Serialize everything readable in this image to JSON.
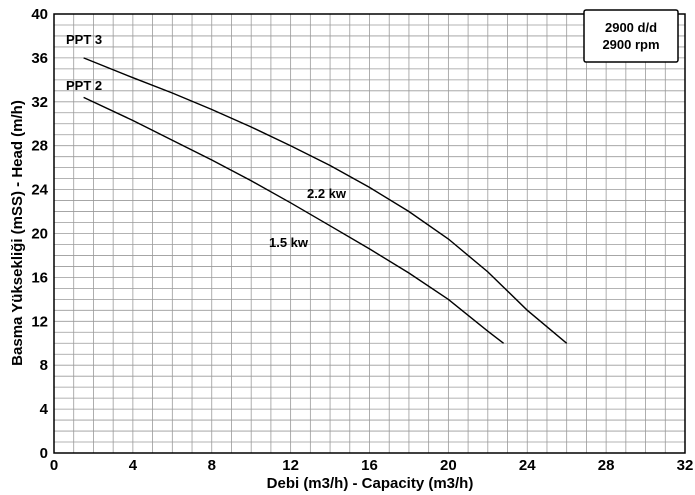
{
  "chart_data": {
    "type": "line",
    "xlabel": "Debi (m3/h) - Capacity (m3/h)",
    "ylabel": "Basma Yüksekliği (mSS) - Head (m/h)",
    "xlim": [
      0,
      32
    ],
    "ylim": [
      0,
      40
    ],
    "x_ticks": [
      0,
      4,
      8,
      12,
      16,
      20,
      24,
      28,
      32
    ],
    "y_ticks": [
      0,
      4,
      8,
      12,
      16,
      20,
      24,
      28,
      32,
      36,
      40
    ],
    "x_minor_step": 1,
    "y_minor_step": 1,
    "grid": true,
    "info_box": {
      "line1": "2900 d/d",
      "line2": "2900 rpm",
      "placement": "top-right"
    },
    "series": [
      {
        "name": "PPT 3",
        "power_label": "2.2  kw",
        "x": [
          1.5,
          4,
          6,
          8,
          10,
          12,
          14,
          16,
          18,
          20,
          22,
          24,
          26
        ],
        "y": [
          36,
          34.2,
          32.8,
          31.3,
          29.7,
          28,
          26.2,
          24.2,
          22,
          19.5,
          16.5,
          13,
          10
        ]
      },
      {
        "name": "PPT 2",
        "power_label": "1.5  kw",
        "x": [
          1.5,
          4,
          6,
          8,
          10,
          12,
          14,
          16,
          18,
          20,
          22,
          22.8
        ],
        "y": [
          32.4,
          30.3,
          28.5,
          26.7,
          24.8,
          22.8,
          20.7,
          18.6,
          16.4,
          14,
          11.1,
          10
        ]
      }
    ]
  }
}
